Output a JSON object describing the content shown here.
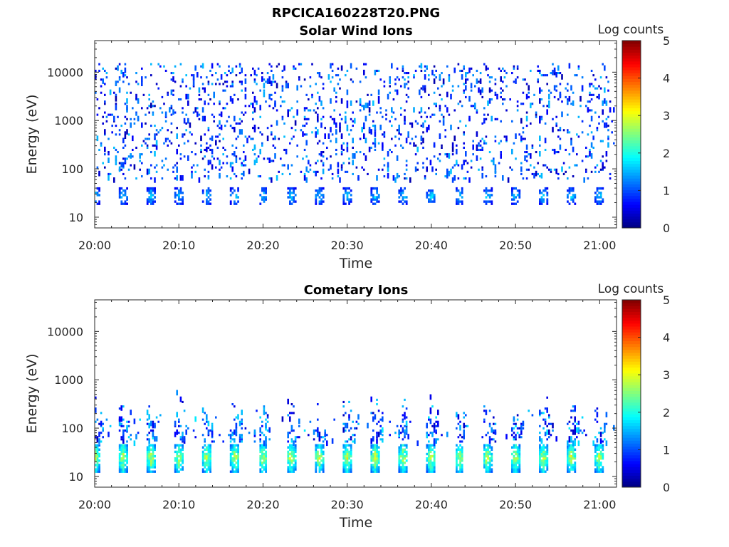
{
  "figure": {
    "title": "RPCICA160228T20.PNG"
  },
  "chart_data": [
    {
      "type": "heatmap",
      "title": "Solar Wind Ions",
      "xlabel": "Time",
      "ylabel": "Energy (eV)",
      "x_ticks": [
        "20:00",
        "20:10",
        "20:20",
        "20:30",
        "20:40",
        "20:50",
        "21:00"
      ],
      "x_range": [
        "20:00",
        "21:02"
      ],
      "y_scale": "log",
      "y_ticks": [
        10,
        100,
        1000,
        10000
      ],
      "y_tick_labels": [
        "10",
        "100",
        "1000",
        "10000"
      ],
      "y_range": [
        6,
        45000
      ],
      "colorbar": {
        "label": "Log counts",
        "ticks": [
          "0",
          "1",
          "2",
          "3",
          "4",
          "5"
        ],
        "range": [
          0,
          5
        ],
        "colormap": "jet"
      },
      "description_bands": {
        "main_band": {
          "energy_eV": [
            18,
            38
          ],
          "typical_log_counts": [
            0.5,
            1.8
          ]
        },
        "scatter_upper": {
          "energy_eV": [
            60,
            15000
          ],
          "typical_log_counts": [
            0.2,
            1.6
          ]
        }
      }
    },
    {
      "type": "heatmap",
      "title": "Cometary Ions",
      "xlabel": "Time",
      "ylabel": "Energy (eV)",
      "x_ticks": [
        "20:00",
        "20:10",
        "20:20",
        "20:30",
        "20:40",
        "20:50",
        "21:00"
      ],
      "x_range": [
        "20:00",
        "21:02"
      ],
      "y_scale": "log",
      "y_ticks": [
        10,
        100,
        1000,
        10000
      ],
      "y_tick_labels": [
        "10",
        "100",
        "1000",
        "10000"
      ],
      "y_range": [
        6,
        45000
      ],
      "colorbar": {
        "label": "Log counts",
        "ticks": [
          "0",
          "1",
          "2",
          "3",
          "4",
          "5"
        ],
        "range": [
          0,
          5
        ],
        "colormap": "jet"
      },
      "description_bands": {
        "main_band": {
          "energy_eV": [
            12,
            45
          ],
          "typical_log_counts": [
            1.0,
            3.0
          ]
        },
        "scatter_upper": {
          "energy_eV": [
            50,
            600
          ],
          "typical_log_counts": [
            0.3,
            1.8
          ]
        }
      }
    }
  ]
}
